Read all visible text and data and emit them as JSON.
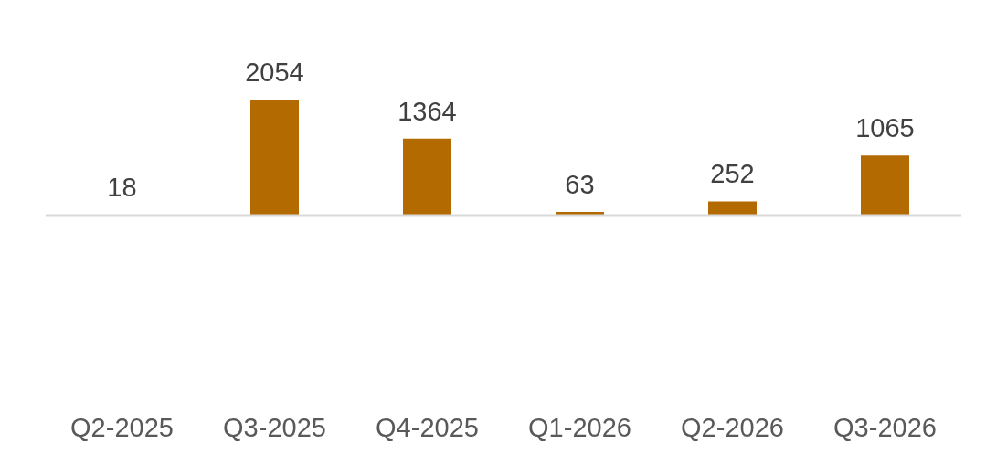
{
  "chart_data": {
    "type": "bar",
    "categories": [
      "Q2-2025",
      "Q3-2025",
      "Q4-2025",
      "Q1-2026",
      "Q2-2026",
      "Q3-2026"
    ],
    "values": [
      18,
      2054,
      1364,
      63,
      252,
      1065
    ],
    "color": "#b36a00",
    "data_labels": true
  }
}
